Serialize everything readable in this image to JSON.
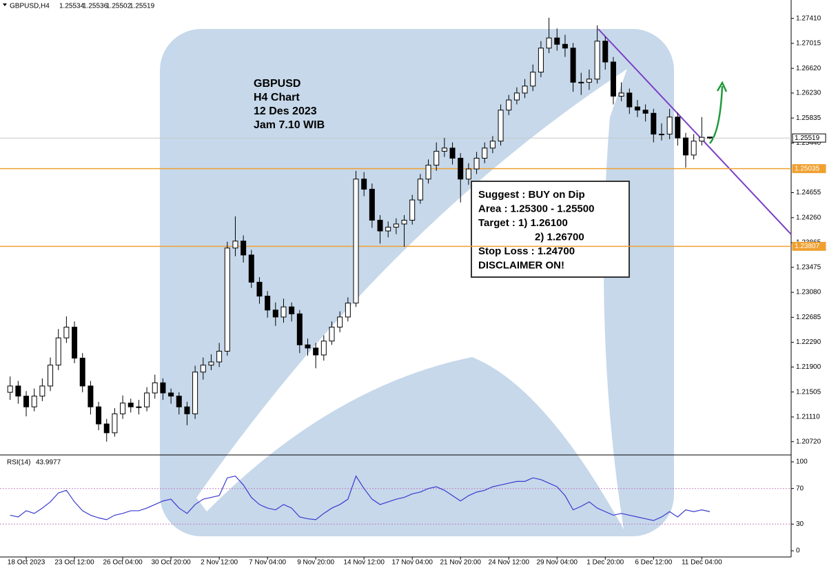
{
  "chart_data": {
    "type": "candlestick",
    "symbol": "GBPUSD,H4",
    "categories": [
      null,
      null,
      "18 Oct 2023",
      null,
      null,
      null,
      null,
      null,
      "23 Oct 12:00",
      null,
      null,
      null,
      null,
      null,
      "26 Oct 04:00",
      null,
      null,
      null,
      null,
      null,
      "30 Oct 20:00",
      null,
      null,
      null,
      null,
      null,
      "2 Nov 12:00",
      null,
      null,
      null,
      null,
      null,
      "7 Nov 04:00",
      null,
      null,
      null,
      null,
      null,
      "9 Nov 20:00",
      null,
      null,
      null,
      null,
      null,
      "14 Nov 12:00",
      null,
      null,
      null,
      null,
      null,
      "17 Nov 04:00",
      null,
      null,
      null,
      null,
      null,
      "21 Nov 20:00",
      null,
      null,
      null,
      null,
      null,
      "24 Nov 12:00",
      null,
      null,
      null,
      null,
      null,
      "29 Nov 04:00",
      null,
      null,
      null,
      null,
      null,
      "1 Dec 20:00",
      null,
      null,
      null,
      null,
      null,
      "6 Dec 12:00",
      null,
      null,
      null,
      null,
      null,
      "11 Dec 04:00",
      null
    ],
    "ohlc": [
      [
        1.215,
        1.2175,
        1.2138,
        1.216
      ],
      [
        1.216,
        1.2168,
        1.2132,
        1.2144
      ],
      [
        1.2144,
        1.2152,
        1.2112,
        1.2127
      ],
      [
        1.2127,
        1.2156,
        1.212,
        1.2144
      ],
      [
        1.2144,
        1.2172,
        1.2136,
        1.216
      ],
      [
        1.216,
        1.2205,
        1.2152,
        1.2193
      ],
      [
        1.2193,
        1.225,
        1.2185,
        1.2236
      ],
      [
        1.2236,
        1.227,
        1.2228,
        1.2253
      ],
      [
        1.2253,
        1.2262,
        1.2196,
        1.2204
      ],
      [
        1.2204,
        1.2212,
        1.215,
        1.216
      ],
      [
        1.216,
        1.2168,
        1.2115,
        1.2127
      ],
      [
        1.2127,
        1.2135,
        1.209,
        1.21
      ],
      [
        1.21,
        1.2108,
        1.2072,
        1.2086
      ],
      [
        1.2086,
        1.2125,
        1.208,
        1.2116
      ],
      [
        1.2116,
        1.2145,
        1.2108,
        1.2133
      ],
      [
        1.2133,
        1.214,
        1.2118,
        1.2127
      ],
      [
        1.2127,
        1.2138,
        1.2115,
        1.2127
      ],
      [
        1.2127,
        1.2158,
        1.212,
        1.2149
      ],
      [
        1.2149,
        1.2178,
        1.214,
        1.2165
      ],
      [
        1.2165,
        1.2172,
        1.2138,
        1.2149
      ],
      [
        1.2149,
        1.2156,
        1.2132,
        1.2144
      ],
      [
        1.2144,
        1.215,
        1.2115,
        1.2127
      ],
      [
        1.2127,
        1.2135,
        1.2098,
        1.2116
      ],
      [
        1.2116,
        1.2192,
        1.2108,
        1.2182
      ],
      [
        1.2182,
        1.2205,
        1.217,
        1.2193
      ],
      [
        1.2193,
        1.221,
        1.2185,
        1.2198
      ],
      [
        1.2198,
        1.2228,
        1.219,
        1.2215
      ],
      [
        1.2215,
        1.2388,
        1.2208,
        1.2378
      ],
      [
        1.2378,
        1.2428,
        1.2365,
        1.2389
      ],
      [
        1.2389,
        1.2398,
        1.2355,
        1.2367
      ],
      [
        1.2367,
        1.2375,
        1.2315,
        1.2324
      ],
      [
        1.2324,
        1.2332,
        1.229,
        1.2302
      ],
      [
        1.2302,
        1.231,
        1.2268,
        1.228
      ],
      [
        1.228,
        1.2292,
        1.2255,
        1.2269
      ],
      [
        1.2269,
        1.2298,
        1.226,
        1.2285
      ],
      [
        1.2285,
        1.2292,
        1.2262,
        1.2274
      ],
      [
        1.2274,
        1.228,
        1.2212,
        1.2225
      ],
      [
        1.2225,
        1.2235,
        1.2208,
        1.222
      ],
      [
        1.222,
        1.2228,
        1.2188,
        1.2209
      ],
      [
        1.2209,
        1.224,
        1.22,
        1.2231
      ],
      [
        1.2231,
        1.2262,
        1.2225,
        1.2253
      ],
      [
        1.2253,
        1.2278,
        1.2245,
        1.2269
      ],
      [
        1.2269,
        1.23,
        1.2262,
        1.2291
      ],
      [
        1.2291,
        1.25,
        1.2285,
        1.2487
      ],
      [
        1.2487,
        1.2498,
        1.246,
        1.2471
      ],
      [
        1.2471,
        1.248,
        1.241,
        1.2422
      ],
      [
        1.2422,
        1.243,
        1.2385,
        1.2405
      ],
      [
        1.2405,
        1.242,
        1.2395,
        1.2411
      ],
      [
        1.2411,
        1.2425,
        1.24,
        1.2416
      ],
      [
        1.2416,
        1.243,
        1.238,
        1.2422
      ],
      [
        1.2422,
        1.2462,
        1.2415,
        1.2454
      ],
      [
        1.2454,
        1.2495,
        1.2448,
        1.2487
      ],
      [
        1.2487,
        1.2518,
        1.248,
        1.2509
      ],
      [
        1.2509,
        1.2545,
        1.25,
        1.2531
      ],
      [
        1.2531,
        1.2552,
        1.2522,
        1.2536
      ],
      [
        1.2536,
        1.2545,
        1.251,
        1.252
      ],
      [
        1.252,
        1.2528,
        1.245,
        1.2487
      ],
      [
        1.2487,
        1.2512,
        1.2478,
        1.2503
      ],
      [
        1.2503,
        1.253,
        1.2495,
        1.252
      ],
      [
        1.252,
        1.2545,
        1.2512,
        1.2536
      ],
      [
        1.2536,
        1.2555,
        1.2528,
        1.2547
      ],
      [
        1.2547,
        1.2605,
        1.254,
        1.2596
      ],
      [
        1.2596,
        1.262,
        1.2588,
        1.2612
      ],
      [
        1.2612,
        1.2632,
        1.2605,
        1.2623
      ],
      [
        1.2623,
        1.2645,
        1.2615,
        1.2634
      ],
      [
        1.2634,
        1.2668,
        1.2626,
        1.2656
      ],
      [
        1.2656,
        1.2705,
        1.2648,
        1.2694
      ],
      [
        1.2694,
        1.2742,
        1.2686,
        1.271
      ],
      [
        1.271,
        1.2725,
        1.269,
        1.27
      ],
      [
        1.27,
        1.2715,
        1.268,
        1.2694
      ],
      [
        1.2694,
        1.2702,
        1.2625,
        1.264
      ],
      [
        1.264,
        1.2655,
        1.262,
        1.264
      ],
      [
        1.264,
        1.266,
        1.2628,
        1.2645
      ],
      [
        1.2645,
        1.273,
        1.2638,
        1.2705
      ],
      [
        1.2705,
        1.2712,
        1.266,
        1.2672
      ],
      [
        1.2672,
        1.268,
        1.2605,
        1.2618
      ],
      [
        1.2618,
        1.264,
        1.261,
        1.2623
      ],
      [
        1.2623,
        1.263,
        1.259,
        1.2601
      ],
      [
        1.2601,
        1.2612,
        1.2585,
        1.2596
      ],
      [
        1.2596,
        1.2605,
        1.2578,
        1.2591
      ],
      [
        1.2591,
        1.2598,
        1.2545,
        1.2558
      ],
      [
        1.2558,
        1.2575,
        1.2548,
        1.2558
      ],
      [
        1.2558,
        1.2598,
        1.255,
        1.2585
      ],
      [
        1.2585,
        1.2592,
        1.254,
        1.2552
      ],
      [
        1.2552,
        1.256,
        1.2505,
        1.2525
      ],
      [
        1.2525,
        1.2558,
        1.2518,
        1.2547
      ],
      [
        1.2547,
        1.2585,
        1.254,
        1.2553
      ],
      [
        1.25534,
        1.25536,
        1.25502,
        1.25519
      ]
    ],
    "ylim": [
      1.2051,
      1.277
    ],
    "yticks": [
      {
        "value": 1.2741,
        "label": "1.27410"
      },
      1.27015,
      {
        "value": 1.2662,
        "label": "1.26620"
      },
      {
        "value": 1.2623,
        "label": "1.26230"
      },
      1.25835,
      {
        "value": 1.2544,
        "label": "1.25440"
      },
      1.24655,
      {
        "value": 1.2426,
        "label": "1.24260"
      },
      1.23865,
      1.23475,
      {
        "value": 1.2308,
        "label": "1.23080"
      },
      1.22685,
      {
        "value": 1.2229,
        "label": "1.22290"
      },
      {
        "value": 1.219,
        "label": "1.21900"
      },
      1.21505,
      {
        "value": 1.2111,
        "label": "1.21110"
      },
      {
        "value": 1.2072,
        "label": "1.20720"
      }
    ],
    "levels": [
      1.25035,
      1.23807
    ],
    "level_color": "#f0a030",
    "annotation": [
      "GBPUSD",
      "H4 Chart",
      "12 Des 2023",
      "Jam 7.10 WIB"
    ],
    "suggestion": [
      "Suggest : BUY on Dip",
      "Area : 1.25300 - 1.25500",
      "Target : 1) 1.26100",
      "2) 1.26700",
      "Stop Loss : 1.24700",
      "DISCLAIMER ON!"
    ],
    "indicator": {
      "type": "line",
      "name": "RSI(14)",
      "color": "#3a3ad0",
      "values": [
        40,
        38,
        45,
        42,
        48,
        55,
        65,
        68,
        55,
        45,
        40,
        37,
        35,
        40,
        42,
        45,
        45,
        48,
        52,
        56,
        58,
        48,
        42,
        52,
        58,
        60,
        62,
        82,
        84,
        74,
        60,
        52,
        48,
        46,
        52,
        48,
        38,
        36,
        35,
        42,
        48,
        52,
        58,
        84,
        70,
        58,
        52,
        55,
        58,
        60,
        64,
        66,
        70,
        72,
        68,
        62,
        56,
        62,
        66,
        68,
        72,
        74,
        76,
        78,
        78,
        82,
        80,
        76,
        72,
        62,
        46,
        50,
        55,
        48,
        44,
        40,
        42,
        40,
        38,
        36,
        34,
        38,
        44,
        38,
        46,
        44,
        46,
        43.9977
      ],
      "ylim": [
        0,
        100
      ],
      "yticks": [
        100,
        70,
        30,
        0
      ],
      "levels": [
        70,
        30
      ]
    }
  }
}
